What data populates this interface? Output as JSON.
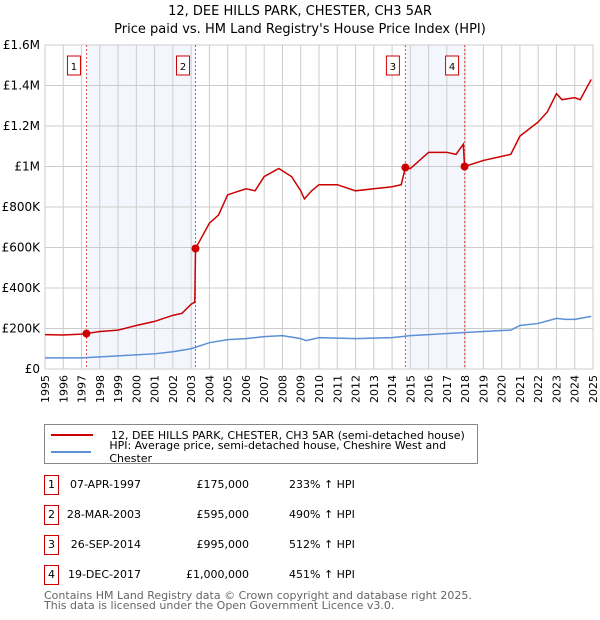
{
  "chart_data": {
    "type": "line",
    "title": "12, DEE HILLS PARK, CHESTER, CH3 5AR",
    "subtitle": "Price paid vs. HM Land Registry's House Price Index (HPI)",
    "xlim": [
      1995,
      2025
    ],
    "ylim": [
      0,
      1600000
    ],
    "grid": true,
    "x_ticks": [
      "1995",
      "1996",
      "1997",
      "1998",
      "1999",
      "2000",
      "2001",
      "2002",
      "2003",
      "2004",
      "2005",
      "2006",
      "2007",
      "2008",
      "2009",
      "2010",
      "2011",
      "2012",
      "2013",
      "2014",
      "2015",
      "2016",
      "2017",
      "2018",
      "2019",
      "2020",
      "2021",
      "2022",
      "2023",
      "2024",
      "2025"
    ],
    "y_ticks": [
      {
        "value": 0,
        "label": "£0"
      },
      {
        "value": 200000,
        "label": "£200K"
      },
      {
        "value": 400000,
        "label": "£400K"
      },
      {
        "value": 600000,
        "label": "£600K"
      },
      {
        "value": 800000,
        "label": "£800K"
      },
      {
        "value": 1000000,
        "label": "£1M"
      },
      {
        "value": 1200000,
        "label": "£1.2M"
      },
      {
        "value": 1400000,
        "label": "£1.4M"
      },
      {
        "value": 1600000,
        "label": "£1.6M"
      }
    ],
    "shaded_ranges": [
      [
        1997.27,
        2003.24
      ],
      [
        2014.73,
        2017.97
      ]
    ],
    "series": [
      {
        "name": "12, DEE HILLS PARK, CHESTER, CH3 5AR (semi-detached house)",
        "color": "#cc0000",
        "x": [
          1995,
          1996,
          1997,
          1997.27,
          1998,
          1999,
          2000,
          2001,
          2002,
          2002.5,
          2003.0,
          2003.2,
          2003.24,
          2004,
          2004.5,
          2005,
          2006,
          2006.5,
          2007,
          2007.8,
          2008.5,
          2009,
          2009.2,
          2009.6,
          2010,
          2011,
          2012,
          2013,
          2014,
          2014.5,
          2014.73,
          2015,
          2016,
          2017,
          2017.5,
          2017.9,
          2017.97,
          2019,
          2020,
          2020.5,
          2021,
          2022,
          2022.5,
          2023,
          2023.3,
          2024,
          2024.3,
          2024.9
        ],
        "y": [
          170000,
          168000,
          172000,
          175000,
          185000,
          192000,
          215000,
          235000,
          265000,
          275000,
          320000,
          330000,
          595000,
          720000,
          760000,
          860000,
          890000,
          880000,
          950000,
          990000,
          950000,
          880000,
          840000,
          880000,
          910000,
          910000,
          880000,
          890000,
          900000,
          910000,
          995000,
          990000,
          1070000,
          1070000,
          1060000,
          1110000,
          1000000,
          1030000,
          1050000,
          1060000,
          1150000,
          1220000,
          1270000,
          1360000,
          1330000,
          1340000,
          1330000,
          1430000
        ]
      },
      {
        "name": "HPI: Average price, semi-detached house, Cheshire West and Chester",
        "color": "#5b8fd6",
        "x": [
          1995,
          1997,
          1999,
          2001,
          2002,
          2003,
          2004,
          2005,
          2006,
          2007,
          2008,
          2009,
          2009.3,
          2010,
          2012,
          2014,
          2015,
          2016,
          2017,
          2018,
          2020,
          2020.5,
          2021,
          2022,
          2023,
          2023.5,
          2024,
          2024.9
        ],
        "y": [
          55000,
          55000,
          65000,
          75000,
          85000,
          100000,
          130000,
          145000,
          150000,
          160000,
          165000,
          150000,
          140000,
          155000,
          150000,
          155000,
          165000,
          170000,
          175000,
          180000,
          190000,
          192000,
          215000,
          225000,
          250000,
          245000,
          245000,
          260000
        ]
      }
    ],
    "sales": [
      {
        "label": "1",
        "date": "07-APR-1997",
        "x": 1997.27,
        "price": "£175,000",
        "value": 175000,
        "hpi": "233% ↑ HPI"
      },
      {
        "label": "2",
        "date": "28-MAR-2003",
        "x": 2003.24,
        "price": "£595,000",
        "value": 595000,
        "hpi": "490% ↑ HPI"
      },
      {
        "label": "3",
        "date": "26-SEP-2014",
        "x": 2014.73,
        "price": "£995,000",
        "value": 995000,
        "hpi": "512% ↑ HPI"
      },
      {
        "label": "4",
        "date": "19-DEC-2017",
        "x": 2017.97,
        "price": "£1,000,000",
        "value": 1000000,
        "hpi": "451% ↑ HPI"
      }
    ]
  },
  "footer": {
    "line1": "Contains HM Land Registry data © Crown copyright and database right 2025.",
    "line2": "This data is licensed under the Open Government Licence v3.0."
  }
}
